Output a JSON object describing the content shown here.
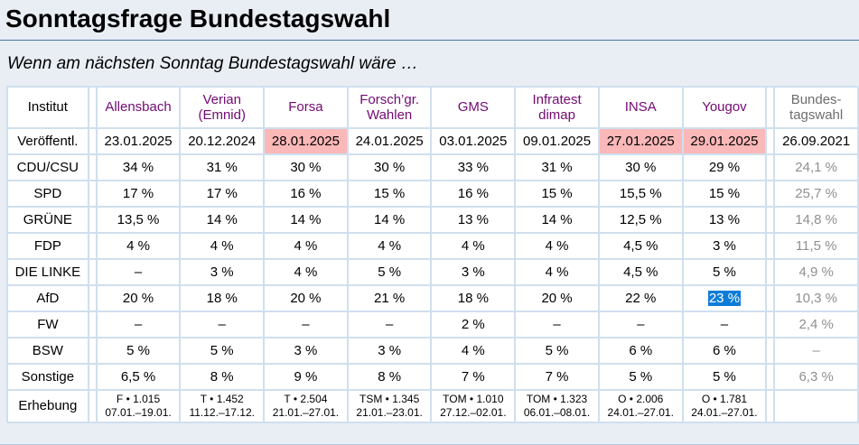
{
  "page": {
    "title": "Sonntagsfrage Bundestagswahl",
    "subtitle": "Wenn am nächsten Sonntag Bundestagswahl wäre …"
  },
  "colors": {
    "accent_purple": "#730a73",
    "highlight_pink": "#fbb8b8",
    "selection_blue": "#0d7cd9",
    "muted_header_gray": "#6d6d6d",
    "muted_value_gray": "#8f8f8f",
    "grid_blue": "#cfdfee",
    "title_rule_blue": "#4579a8",
    "page_background": "#E9EEF5",
    "bottom_rule": "#b6cbdc"
  },
  "table": {
    "corner_label": "Institut",
    "publish_row_label": "Veröffentl.",
    "survey_row_label": "Erhebung",
    "columns": [
      {
        "name": "Allensbach",
        "name_lines": [
          "Allensbach"
        ],
        "date": "23.01.2025",
        "date_highlight": false,
        "muted": false
      },
      {
        "name": "Verian (Emnid)",
        "name_lines": [
          "Verian",
          "(Emnid)"
        ],
        "date": "20.12.2024",
        "date_highlight": false,
        "muted": false
      },
      {
        "name": "Forsa",
        "name_lines": [
          "Forsa"
        ],
        "date": "28.01.2025",
        "date_highlight": true,
        "muted": false
      },
      {
        "name": "Forsch’gr. Wahlen",
        "name_lines": [
          "Forsch’gr.",
          "Wahlen"
        ],
        "date": "24.01.2025",
        "date_highlight": false,
        "muted": false
      },
      {
        "name": "GMS",
        "name_lines": [
          "GMS"
        ],
        "date": "03.01.2025",
        "date_highlight": false,
        "muted": false
      },
      {
        "name": "Infratest dimap",
        "name_lines": [
          "Infratest",
          "dimap"
        ],
        "date": "09.01.2025",
        "date_highlight": false,
        "muted": false
      },
      {
        "name": "INSA",
        "name_lines": [
          "INSA"
        ],
        "date": "27.01.2025",
        "date_highlight": true,
        "muted": false
      },
      {
        "name": "Yougov",
        "name_lines": [
          "Yougov"
        ],
        "date": "29.01.2025",
        "date_highlight": true,
        "muted": false
      },
      {
        "name": "Bundestagswahl",
        "name_lines": [
          "Bundes-",
          "tagswahl"
        ],
        "date": "26.09.2021",
        "date_highlight": false,
        "muted": true
      }
    ],
    "party_rows": [
      {
        "label": "CDU/CSU",
        "values": [
          "34 %",
          "31 %",
          "30 %",
          "30 %",
          "33 %",
          "31 %",
          "30 %",
          "29 %",
          "24,1 %"
        ]
      },
      {
        "label": "SPD",
        "values": [
          "17 %",
          "17 %",
          "16 %",
          "15 %",
          "16 %",
          "15 %",
          "15,5 %",
          "15 %",
          "25,7 %"
        ]
      },
      {
        "label": "GRÜNE",
        "values": [
          "13,5 %",
          "14 %",
          "14 %",
          "14 %",
          "13 %",
          "14 %",
          "12,5 %",
          "13 %",
          "14,8 %"
        ]
      },
      {
        "label": "FDP",
        "values": [
          "4 %",
          "4 %",
          "4 %",
          "4 %",
          "4 %",
          "4 %",
          "4,5 %",
          "3 %",
          "11,5 %"
        ]
      },
      {
        "label": "DIE LINKE",
        "values": [
          "–",
          "3 %",
          "4 %",
          "5 %",
          "3 %",
          "4 %",
          "4,5 %",
          "5 %",
          "4,9 %"
        ]
      },
      {
        "label": "AfD",
        "values": [
          "20 %",
          "18 %",
          "20 %",
          "21 %",
          "18 %",
          "20 %",
          "22 %",
          "23 %",
          "10,3 %"
        ],
        "selected_index": 7
      },
      {
        "label": "FW",
        "values": [
          "–",
          "–",
          "–",
          "–",
          "2 %",
          "–",
          "–",
          "–",
          "2,4 %"
        ]
      },
      {
        "label": "BSW",
        "values": [
          "5 %",
          "5 %",
          "3 %",
          "3 %",
          "4 %",
          "5 %",
          "6 %",
          "6 %",
          "–"
        ]
      },
      {
        "label": "Sonstige",
        "values": [
          "6,5 %",
          "8 %",
          "9 %",
          "8 %",
          "7 %",
          "7 %",
          "5 %",
          "5 %",
          "6,3 %"
        ]
      }
    ],
    "survey_cells": [
      {
        "method": "F • 1.015",
        "period": "07.01.–19.01."
      },
      {
        "method": "T • 1.452",
        "period": "11.12.–17.12."
      },
      {
        "method": "T • 2.504",
        "period": "21.01.–27.01."
      },
      {
        "method": "TSM • 1.345",
        "period": "21.01.–23.01."
      },
      {
        "method": "TOM • 1.010",
        "period": "27.12.–02.01."
      },
      {
        "method": "TOM • 1.323",
        "period": "06.01.–08.01."
      },
      {
        "method": "O • 2.006",
        "period": "24.01.–27.01."
      },
      {
        "method": "O • 1.781",
        "period": "24.01.–27.01."
      },
      {
        "method": "",
        "period": ""
      }
    ]
  }
}
